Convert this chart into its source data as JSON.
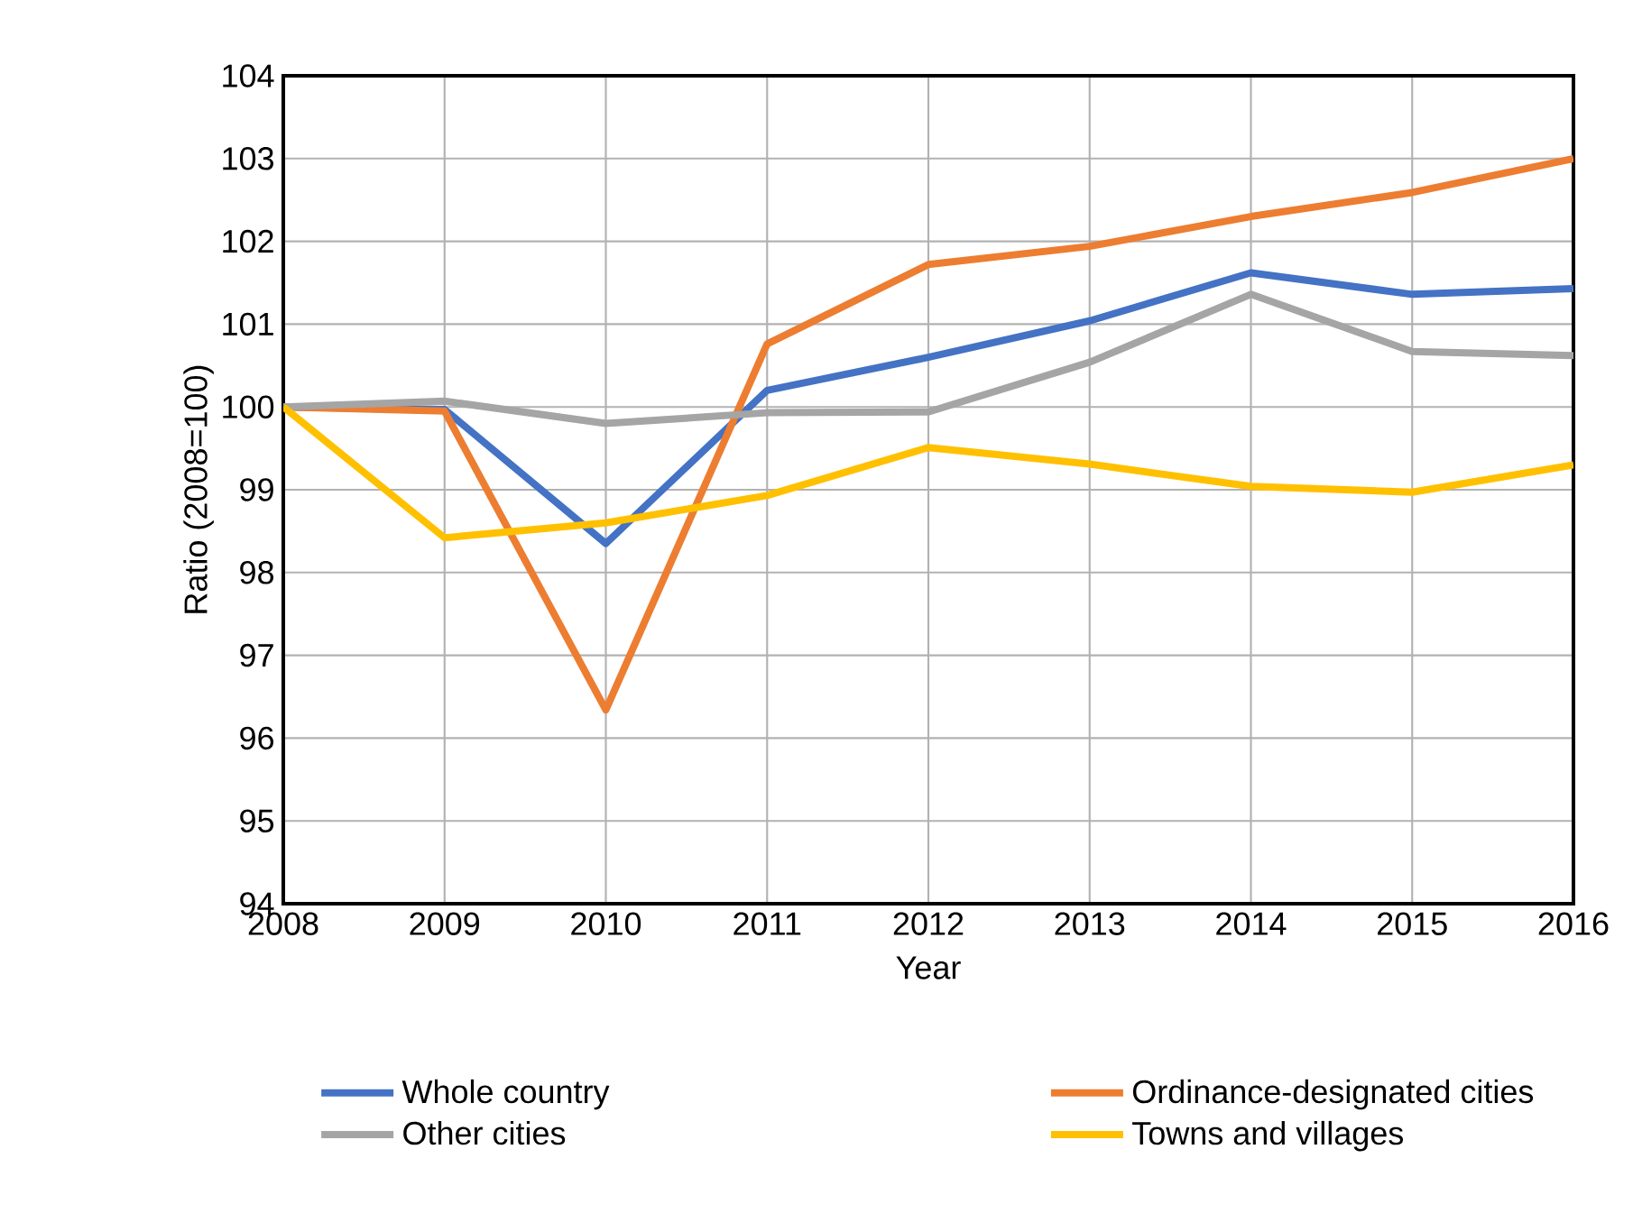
{
  "chart_data": {
    "type": "line",
    "xlabel": "Year",
    "ylabel": "Ratio (2008=100)",
    "x": [
      2008,
      2009,
      2010,
      2011,
      2012,
      2013,
      2014,
      2015,
      2016
    ],
    "xlim": [
      2008,
      2016
    ],
    "xticks": [
      2008,
      2009,
      2010,
      2011,
      2012,
      2013,
      2014,
      2015,
      2016
    ],
    "ylim": [
      94,
      104
    ],
    "yticks": [
      94,
      95,
      96,
      97,
      98,
      99,
      100,
      101,
      102,
      103,
      104
    ],
    "grid": true,
    "legend": "bottom",
    "marker": "none",
    "line_style": "solid",
    "series": [
      {
        "name": "Whole country",
        "color": "#4472c4",
        "values": [
          100,
          99.97,
          98.35,
          100.2,
          100.6,
          101.04,
          101.62,
          101.36,
          101.43
        ]
      },
      {
        "name": "Ordinance-designated cities",
        "color": "#ed7d31",
        "values": [
          100,
          99.95,
          96.34,
          100.76,
          101.72,
          101.94,
          102.3,
          102.59,
          103.0
        ]
      },
      {
        "name": "Other cities",
        "color": "#a5a5a5",
        "values": [
          100,
          100.07,
          99.8,
          99.93,
          99.94,
          100.54,
          101.36,
          100.67,
          100.62
        ]
      },
      {
        "name": "Towns and villages",
        "color": "#ffc000",
        "values": [
          100,
          98.42,
          98.6,
          98.93,
          99.51,
          99.31,
          99.04,
          98.97,
          99.3
        ]
      }
    ]
  }
}
